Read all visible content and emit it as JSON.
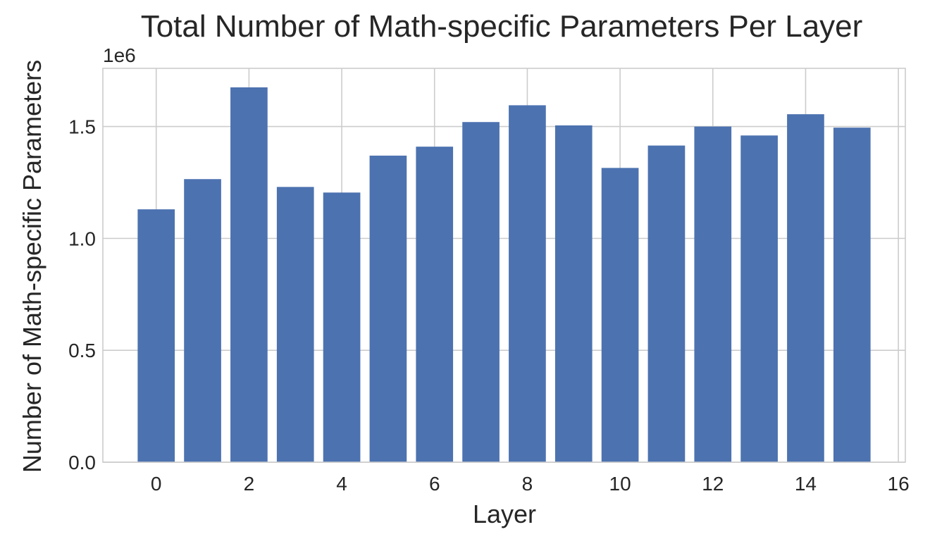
{
  "chart_data": {
    "type": "bar",
    "title": "Total Number of Math-specific Parameters Per Layer",
    "xlabel": "Layer",
    "ylabel": "Number of Math-specific Parameters",
    "y_offset_label": "1e6",
    "x": [
      0,
      1,
      2,
      3,
      4,
      5,
      6,
      7,
      8,
      9,
      10,
      11,
      12,
      13,
      14,
      15
    ],
    "values": [
      1.13,
      1.265,
      1.675,
      1.23,
      1.205,
      1.37,
      1.41,
      1.52,
      1.595,
      1.505,
      1.315,
      1.415,
      1.5,
      1.46,
      1.555,
      1.495
    ],
    "xlim": [
      -1.15,
      16.15
    ],
    "ylim": [
      0,
      1.76
    ],
    "x_ticks": [
      0,
      2,
      4,
      6,
      8,
      10,
      12,
      14,
      16
    ],
    "x_tick_labels": [
      "0",
      "2",
      "4",
      "6",
      "8",
      "10",
      "12",
      "14",
      "16"
    ],
    "y_ticks": [
      0.0,
      0.5,
      1.0,
      1.5
    ],
    "y_tick_labels": [
      "0.0",
      "0.5",
      "1.0",
      "1.5"
    ],
    "grid": true,
    "colors": {
      "bar": "#4c72b0",
      "grid": "#cccccc",
      "text": "#262626",
      "spine": "#cccccc"
    }
  }
}
